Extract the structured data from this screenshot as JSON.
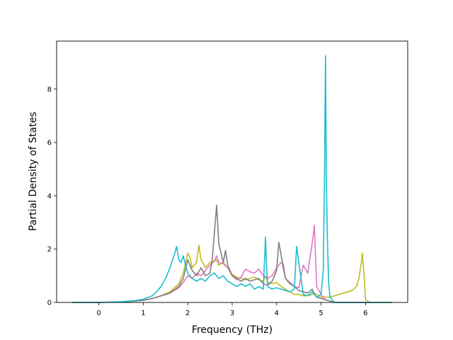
{
  "chart_data": {
    "type": "line",
    "title": "",
    "xlabel": "Frequency (THz)",
    "ylabel": "Partial Density of States",
    "xlim": [
      -0.95,
      6.95
    ],
    "ylim": [
      0,
      9.8
    ],
    "xticks": [
      0,
      1,
      2,
      3,
      4,
      5,
      6
    ],
    "yticks": [
      0,
      2,
      4,
      6,
      8
    ],
    "grid": false,
    "legend": "none",
    "series": [
      {
        "color": "#bcbd22",
        "x": [
          -0.6,
          0.0,
          0.5,
          0.8,
          1.0,
          1.2,
          1.4,
          1.6,
          1.8,
          1.9,
          2.0,
          2.05,
          2.1,
          2.2,
          2.25,
          2.3,
          2.4,
          2.5,
          2.6,
          2.65,
          2.7,
          2.8,
          2.9,
          3.0,
          3.1,
          3.2,
          3.3,
          3.4,
          3.5,
          3.6,
          3.7,
          3.75,
          3.8,
          3.9,
          4.0,
          4.1,
          4.2,
          4.3,
          4.4,
          4.5,
          4.6,
          4.7,
          4.8,
          4.85,
          4.9,
          5.0,
          5.1,
          5.2,
          5.3,
          5.5,
          5.7,
          5.8,
          5.85,
          5.9,
          5.93,
          5.97,
          6.0,
          6.1,
          6.6
        ],
        "y": [
          0,
          0,
          0.02,
          0.05,
          0.08,
          0.15,
          0.25,
          0.4,
          0.7,
          1.1,
          1.85,
          1.7,
          1.3,
          1.5,
          2.15,
          1.6,
          1.3,
          1.5,
          1.55,
          1.6,
          1.4,
          1.5,
          1.3,
          1.05,
          0.95,
          0.9,
          0.85,
          0.9,
          0.95,
          0.85,
          0.8,
          1.0,
          0.75,
          0.7,
          0.75,
          0.6,
          0.5,
          0.4,
          0.3,
          0.3,
          0.25,
          0.25,
          0.3,
          0.35,
          0.3,
          0.2,
          0.2,
          0.2,
          0.25,
          0.35,
          0.45,
          0.6,
          0.9,
          1.4,
          1.85,
          1.0,
          0.1,
          0,
          0
        ]
      },
      {
        "color": "#e377c2",
        "x": [
          -0.6,
          0.0,
          0.5,
          0.8,
          1.0,
          1.2,
          1.4,
          1.6,
          1.8,
          1.9,
          2.0,
          2.1,
          2.2,
          2.3,
          2.4,
          2.5,
          2.6,
          2.65,
          2.7,
          2.8,
          2.9,
          3.0,
          3.1,
          3.2,
          3.3,
          3.4,
          3.5,
          3.6,
          3.7,
          3.8,
          3.9,
          4.0,
          4.1,
          4.15,
          4.2,
          4.3,
          4.4,
          4.5,
          4.6,
          4.7,
          4.8,
          4.85,
          4.9,
          5.0,
          5.1,
          5.2,
          5.3,
          6.6
        ],
        "y": [
          0,
          0,
          0.02,
          0.05,
          0.08,
          0.15,
          0.25,
          0.35,
          0.55,
          0.75,
          1.0,
          0.9,
          1.1,
          1.0,
          1.2,
          1.4,
          1.55,
          1.75,
          1.5,
          1.45,
          1.3,
          1.0,
          0.85,
          0.95,
          1.25,
          1.15,
          1.1,
          1.25,
          1.0,
          0.9,
          1.0,
          1.3,
          1.5,
          1.45,
          0.9,
          0.75,
          0.6,
          0.55,
          1.4,
          1.1,
          2.2,
          2.9,
          0.6,
          0.3,
          0.1,
          0.05,
          0,
          0
        ]
      },
      {
        "color": "#7f7f7f",
        "x": [
          -0.6,
          0.0,
          0.5,
          0.8,
          1.0,
          1.2,
          1.4,
          1.6,
          1.8,
          1.9,
          2.0,
          2.1,
          2.2,
          2.3,
          2.4,
          2.5,
          2.55,
          2.6,
          2.65,
          2.7,
          2.8,
          2.85,
          2.9,
          3.0,
          3.1,
          3.2,
          3.3,
          3.4,
          3.5,
          3.6,
          3.7,
          3.8,
          3.9,
          4.0,
          4.05,
          4.1,
          4.15,
          4.2,
          4.3,
          4.4,
          4.5,
          4.6,
          4.7,
          4.8,
          4.85,
          4.9,
          5.0,
          5.1,
          5.2,
          5.3,
          6.6
        ],
        "y": [
          0,
          0,
          0.02,
          0.05,
          0.08,
          0.15,
          0.25,
          0.35,
          0.6,
          0.9,
          1.6,
          1.2,
          1.0,
          1.3,
          1.0,
          1.1,
          1.6,
          2.6,
          3.65,
          2.2,
          1.5,
          1.95,
          1.4,
          1.0,
          0.9,
          0.8,
          0.9,
          0.8,
          0.85,
          0.9,
          0.7,
          0.65,
          0.8,
          1.2,
          2.25,
          1.8,
          1.3,
          0.9,
          0.7,
          0.6,
          0.45,
          0.4,
          0.35,
          0.5,
          0.3,
          0.2,
          0.15,
          0.1,
          0.05,
          0,
          0
        ]
      },
      {
        "color": "#17becf",
        "x": [
          -0.6,
          0.0,
          0.5,
          0.8,
          1.0,
          1.2,
          1.3,
          1.4,
          1.5,
          1.6,
          1.7,
          1.75,
          1.8,
          1.85,
          1.9,
          1.95,
          2.0,
          2.1,
          2.2,
          2.3,
          2.4,
          2.5,
          2.6,
          2.7,
          2.8,
          2.9,
          3.0,
          3.1,
          3.2,
          3.3,
          3.4,
          3.5,
          3.6,
          3.7,
          3.75,
          3.77,
          3.8,
          3.9,
          4.0,
          4.1,
          4.2,
          4.3,
          4.4,
          4.45,
          4.5,
          4.6,
          4.7,
          4.8,
          4.9,
          5.0,
          5.05,
          5.08,
          5.1,
          5.12,
          5.14,
          5.17,
          5.2,
          5.3,
          6.6
        ],
        "y": [
          0,
          0,
          0.03,
          0.07,
          0.12,
          0.25,
          0.4,
          0.6,
          0.9,
          1.3,
          1.8,
          2.1,
          1.6,
          1.5,
          1.75,
          1.4,
          1.1,
          0.9,
          0.8,
          0.9,
          0.8,
          1.0,
          1.1,
          0.9,
          1.0,
          0.8,
          0.7,
          0.6,
          0.7,
          0.6,
          0.7,
          0.5,
          0.6,
          0.5,
          2.45,
          1.5,
          0.6,
          0.5,
          0.55,
          0.5,
          0.45,
          0.4,
          0.5,
          2.1,
          1.5,
          0.3,
          0.25,
          0.4,
          0.2,
          0.3,
          1.2,
          5.0,
          9.25,
          4.5,
          2.6,
          0.8,
          0.2,
          0,
          0
        ]
      }
    ]
  }
}
